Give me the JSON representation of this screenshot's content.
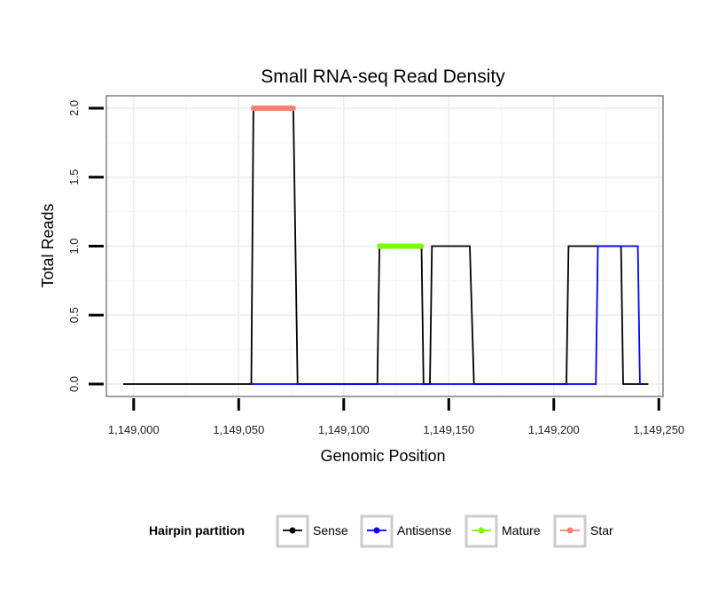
{
  "chart_data": {
    "type": "line",
    "title": "Small RNA-seq Read Density",
    "xlabel": "Genomic Position",
    "ylabel": "Total Reads",
    "xlim": [
      1148987,
      1149252
    ],
    "ylim": [
      -0.09,
      2.09
    ],
    "x_ticks": [
      1149000,
      1149050,
      1149100,
      1149150,
      1149200,
      1149250
    ],
    "x_tick_labels": [
      "1,149,000",
      "1,149,050",
      "1,149,100",
      "1,149,150",
      "1,149,200",
      "1,149,250"
    ],
    "y_ticks": [
      0,
      0.5,
      1,
      1.5,
      2
    ],
    "y_tick_labels": [
      "0.0",
      "0.5",
      "1.0",
      "1.5",
      "2.0"
    ],
    "grid": true,
    "legend": {
      "title": "Hairpin partition",
      "position": "bottom",
      "entries": [
        "Sense",
        "Antisense",
        "Mature",
        "Star"
      ]
    },
    "series": [
      {
        "name": "Sense",
        "color": "#000000",
        "kind": "line",
        "x": [
          1148995,
          1149056,
          1149057,
          1149076,
          1149078,
          1149116,
          1149117,
          1149137,
          1149138,
          1149141,
          1149142,
          1149160,
          1149162,
          1149206,
          1149207,
          1149232,
          1149233,
          1149245
        ],
        "y": [
          0,
          0,
          2,
          2,
          0,
          0,
          1,
          1,
          0,
          0,
          1,
          1,
          0,
          0,
          1,
          1,
          0,
          0
        ]
      },
      {
        "name": "Antisense",
        "color": "#0000ff",
        "kind": "line",
        "x": [
          1149056,
          1149220,
          1149221,
          1149240,
          1149241,
          1149242
        ],
        "y": [
          0,
          0,
          1,
          1,
          0,
          0
        ]
      },
      {
        "name": "Mature",
        "color": "#7cfc00",
        "kind": "segment",
        "x": [
          1149117,
          1149137
        ],
        "y": [
          1,
          1
        ]
      },
      {
        "name": "Star",
        "color": "#fa8072",
        "kind": "segment",
        "x": [
          1149057,
          1149076
        ],
        "y": [
          2,
          2
        ]
      }
    ]
  }
}
